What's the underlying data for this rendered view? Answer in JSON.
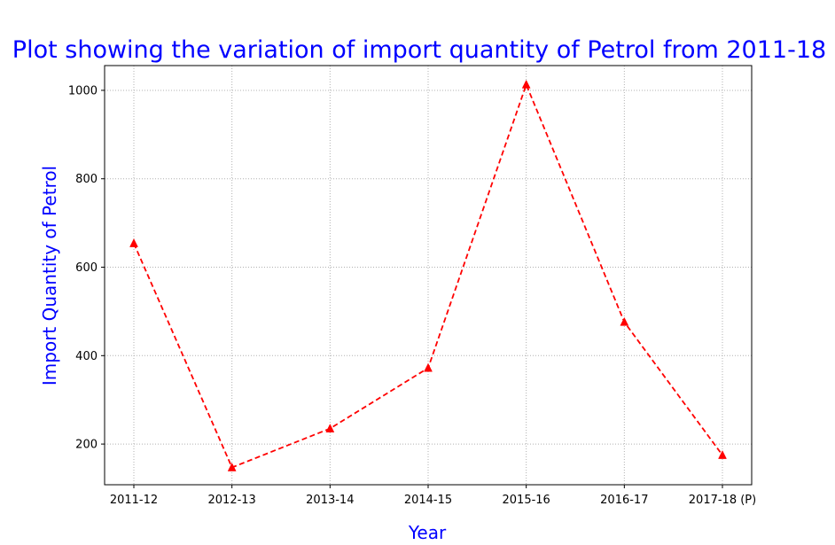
{
  "chart_data": {
    "type": "line",
    "title": "Plot showing the variation of import quantity of Petrol from 2011-18",
    "xlabel": "Year",
    "ylabel": "Import Quantity of Petrol",
    "categories": [
      "2011-12",
      "2012-13",
      "2013-14",
      "2014-15",
      "2015-16",
      "2016-17",
      "2017-18 (P)"
    ],
    "series": [
      {
        "name": "Petrol",
        "values": [
          654,
          147,
          235,
          372,
          1013,
          476,
          175
        ],
        "color": "#ff0000",
        "line_style": "dashed",
        "marker": "triangle-up"
      }
    ],
    "ylim": [
      108,
      1056
    ],
    "yticks": [
      200,
      400,
      600,
      800,
      1000
    ],
    "grid": true,
    "text_color": "#0000ff"
  }
}
